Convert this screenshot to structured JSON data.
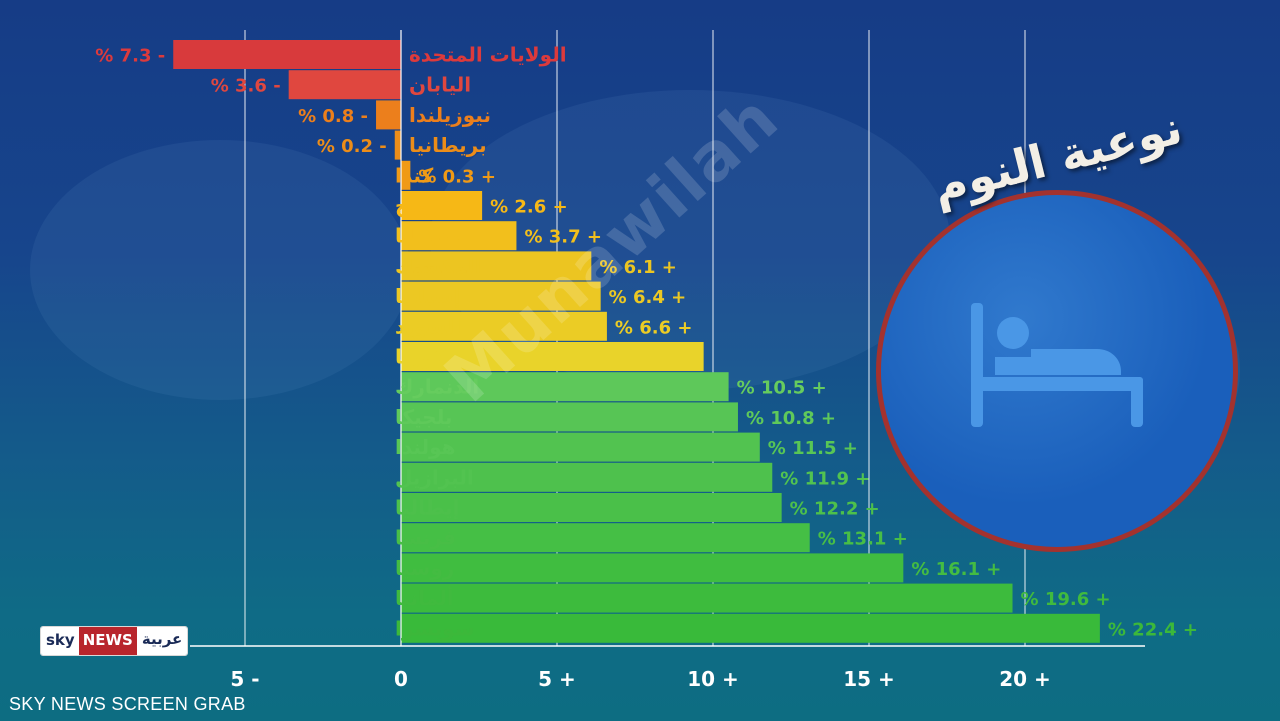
{
  "chart_data": {
    "type": "bar",
    "orientation": "horizontal",
    "title": "نوعية النوم",
    "categories": [
      "الولايات المتحدة",
      "اليابان",
      "نيوزيلندا",
      "بريطانيا",
      "كندا",
      "النرويج",
      "أستراليا",
      "المكسيك",
      "إسبانيا",
      "السويد",
      "كوريا",
      "الدنمارك",
      "بلجيكا",
      "هولندا",
      "البرازيل",
      "إيطاليا",
      "فرنسا",
      "روسيا",
      "ألمانيا",
      "سويسرا"
    ],
    "values": [
      -7.3,
      -3.6,
      -0.8,
      -0.2,
      0.3,
      2.6,
      3.7,
      6.1,
      6.4,
      6.6,
      9.7,
      10.5,
      10.8,
      11.5,
      11.9,
      12.2,
      13.1,
      16.1,
      19.6,
      22.4
    ],
    "value_labels": [
      "% 7.3 -",
      "% 3.6 -",
      "% 0.8 -",
      "% 0.2 -",
      "% 0.3 +",
      "% 2.6 +",
      "% 3.7 +",
      "% 6.1 +",
      "% 6.4 +",
      "% 6.6 +",
      "",
      "% 10.5 +",
      "% 10.8 +",
      "% 11.5 +",
      "% 11.9 +",
      "% 12.2 +",
      "% 13.1 +",
      "% 16.1 +",
      "% 19.6 +",
      "% 22.4 +"
    ],
    "bar_colors": [
      "#d83a3c",
      "#e0473f",
      "#ec7f1c",
      "#ec8d19",
      "#f09a16",
      "#f6b816",
      "#f2bf1c",
      "#ecc521",
      "#ecc823",
      "#ebcc25",
      "#e9d32a",
      "#5ec85a",
      "#57c555",
      "#52c350",
      "#4ec14d",
      "#4ac049",
      "#45bf45",
      "#40bd40",
      "#3dbb3d",
      "#39ba3a"
    ],
    "label_colors": [
      "#dc3a3c",
      "#e0473f",
      "#ec7f1c",
      "#ec8d19",
      "#f09a16",
      "#f6b816",
      "#f2bf1c",
      "#ecc521",
      "#ecc823",
      "#ebcc25",
      "#e9d32a",
      "#66cc5e",
      "#5fc95a",
      "#58c655",
      "#52c350",
      "#4dc04b",
      "#48be46",
      "#44bc42",
      "#40ba3e",
      "#3cb83a"
    ],
    "xlim": [
      -5,
      23.5
    ],
    "x_ticks": [
      -5,
      0,
      5,
      10,
      15,
      20
    ],
    "x_tick_labels": [
      "5 -",
      "0",
      "5 +",
      "10 +",
      "15 +",
      "20 +"
    ],
    "grid": true
  },
  "watermark": "Munawilah",
  "branding": {
    "logo_sky": "sky",
    "logo_news": "NEWS",
    "logo_arabic": "عربية"
  },
  "footer": "SKY NEWS SCREEN GRAB",
  "colors": {
    "axis": "#ffffff",
    "gridline": "#ffffff",
    "badge_border": "#a3322e",
    "badge_fill": "#1a5fbb",
    "bed_icon": "#4a97e6"
  },
  "icons": {
    "badge_icon": "bed-icon"
  }
}
